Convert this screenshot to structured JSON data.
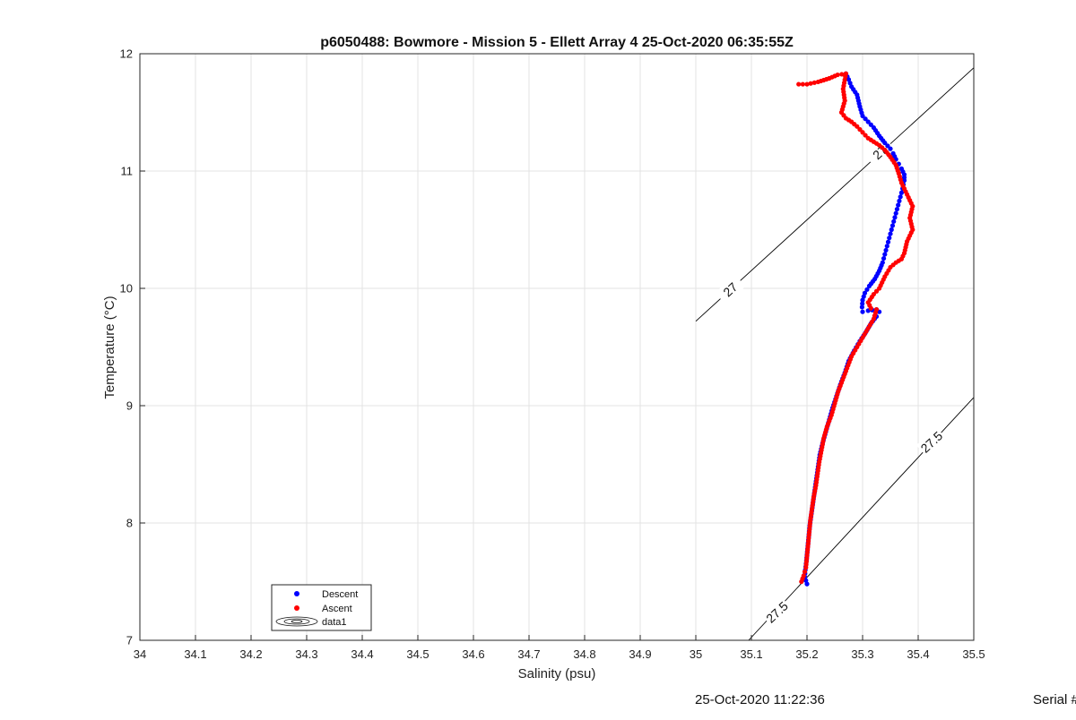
{
  "chart_data": {
    "type": "scatter",
    "title": "p6050488: Bowmore - Mission 5 - Ellett Array 4 25-Oct-2020 06:35:55Z",
    "xlabel": "Salinity (psu)",
    "ylabel": "Temperature (°C)",
    "xlim": [
      34,
      35.5
    ],
    "ylim": [
      7,
      12
    ],
    "xticks": [
      "34",
      "34.1",
      "34.2",
      "34.3",
      "34.4",
      "34.5",
      "34.6",
      "34.7",
      "34.8",
      "34.9",
      "35",
      "35.1",
      "35.2",
      "35.3",
      "35.4",
      "35.5"
    ],
    "yticks": [
      "7",
      "8",
      "9",
      "10",
      "11",
      "12"
    ],
    "grid": true,
    "legend_position": "bottom-left",
    "legend": [
      "Descent",
      "Ascent",
      "data1"
    ],
    "series": [
      {
        "name": "Descent",
        "color": "#0000ff",
        "points": [
          [
            35.27,
            11.83
          ],
          [
            35.275,
            11.78
          ],
          [
            35.28,
            11.72
          ],
          [
            35.29,
            11.65
          ],
          [
            35.295,
            11.55
          ],
          [
            35.3,
            11.47
          ],
          [
            35.31,
            11.42
          ],
          [
            35.32,
            11.37
          ],
          [
            35.33,
            11.3
          ],
          [
            35.34,
            11.24
          ],
          [
            35.35,
            11.19
          ],
          [
            35.355,
            11.15
          ],
          [
            35.36,
            11.1
          ],
          [
            35.365,
            11.06
          ],
          [
            35.37,
            11.02
          ],
          [
            35.375,
            10.97
          ],
          [
            35.375,
            10.92
          ],
          [
            35.372,
            10.85
          ],
          [
            35.368,
            10.78
          ],
          [
            35.364,
            10.71
          ],
          [
            35.36,
            10.64
          ],
          [
            35.356,
            10.57
          ],
          [
            35.352,
            10.5
          ],
          [
            35.348,
            10.43
          ],
          [
            35.344,
            10.36
          ],
          [
            35.34,
            10.29
          ],
          [
            35.336,
            10.22
          ],
          [
            35.33,
            10.15
          ],
          [
            35.322,
            10.08
          ],
          [
            35.312,
            10.02
          ],
          [
            35.304,
            9.96
          ],
          [
            35.3,
            9.9
          ],
          [
            35.299,
            9.84
          ],
          [
            35.3,
            9.8
          ],
          [
            35.31,
            9.81
          ],
          [
            35.325,
            9.82
          ],
          [
            35.33,
            9.8
          ],
          [
            35.325,
            9.76
          ],
          [
            35.315,
            9.7
          ],
          [
            35.305,
            9.62
          ],
          [
            35.295,
            9.55
          ],
          [
            35.285,
            9.47
          ],
          [
            35.275,
            9.38
          ],
          [
            35.268,
            9.28
          ],
          [
            35.26,
            9.18
          ],
          [
            35.253,
            9.08
          ],
          [
            35.246,
            8.98
          ],
          [
            35.24,
            8.88
          ],
          [
            35.234,
            8.78
          ],
          [
            35.228,
            8.68
          ],
          [
            35.223,
            8.58
          ],
          [
            35.22,
            8.48
          ],
          [
            35.217,
            8.38
          ],
          [
            35.214,
            8.28
          ],
          [
            35.211,
            8.18
          ],
          [
            35.208,
            8.08
          ],
          [
            35.205,
            7.98
          ],
          [
            35.203,
            7.88
          ],
          [
            35.201,
            7.78
          ],
          [
            35.199,
            7.68
          ],
          [
            35.197,
            7.6
          ],
          [
            35.196,
            7.54
          ],
          [
            35.2,
            7.48
          ]
        ]
      },
      {
        "name": "Ascent",
        "color": "#ff0000",
        "points": [
          [
            35.185,
            11.74
          ],
          [
            35.2,
            11.74
          ],
          [
            35.22,
            11.76
          ],
          [
            35.24,
            11.79
          ],
          [
            35.255,
            11.82
          ],
          [
            35.27,
            11.83
          ],
          [
            35.265,
            11.7
          ],
          [
            35.268,
            11.6
          ],
          [
            35.262,
            11.5
          ],
          [
            35.27,
            11.45
          ],
          [
            35.28,
            11.42
          ],
          [
            35.29,
            11.38
          ],
          [
            35.3,
            11.33
          ],
          [
            35.31,
            11.28
          ],
          [
            35.32,
            11.25
          ],
          [
            35.33,
            11.22
          ],
          [
            35.34,
            11.18
          ],
          [
            35.35,
            11.12
          ],
          [
            35.36,
            11.05
          ],
          [
            35.365,
            10.98
          ],
          [
            35.37,
            10.9
          ],
          [
            35.38,
            10.8
          ],
          [
            35.39,
            10.7
          ],
          [
            35.385,
            10.6
          ],
          [
            35.39,
            10.5
          ],
          [
            35.38,
            10.4
          ],
          [
            35.375,
            10.3
          ],
          [
            35.37,
            10.25
          ],
          [
            35.36,
            10.22
          ],
          [
            35.35,
            10.18
          ],
          [
            35.34,
            10.1
          ],
          [
            35.33,
            10.0
          ],
          [
            35.32,
            9.95
          ],
          [
            35.31,
            9.88
          ],
          [
            35.315,
            9.83
          ],
          [
            35.325,
            9.82
          ],
          [
            35.32,
            9.74
          ],
          [
            35.31,
            9.66
          ],
          [
            35.3,
            9.58
          ],
          [
            35.29,
            9.5
          ],
          [
            35.28,
            9.42
          ],
          [
            35.272,
            9.32
          ],
          [
            35.264,
            9.22
          ],
          [
            35.256,
            9.12
          ],
          [
            35.25,
            9.02
          ],
          [
            35.244,
            8.92
          ],
          [
            35.236,
            8.82
          ],
          [
            35.23,
            8.72
          ],
          [
            35.226,
            8.62
          ],
          [
            35.222,
            8.52
          ],
          [
            35.219,
            8.42
          ],
          [
            35.216,
            8.32
          ],
          [
            35.212,
            8.22
          ],
          [
            35.209,
            8.12
          ],
          [
            35.206,
            8.02
          ],
          [
            35.204,
            7.92
          ],
          [
            35.202,
            7.82
          ],
          [
            35.2,
            7.72
          ],
          [
            35.198,
            7.62
          ],
          [
            35.194,
            7.55
          ],
          [
            35.19,
            7.5
          ]
        ]
      }
    ],
    "contours": [
      {
        "label": "27",
        "points": [
          [
            35.0,
            9.72
          ],
          [
            35.5,
            11.88
          ]
        ]
      },
      {
        "label": "27.5",
        "points": [
          [
            35.095,
            7.0
          ],
          [
            35.5,
            9.07
          ]
        ]
      }
    ],
    "contour_labels": [
      {
        "text": "27",
        "at": [
          35.062,
          9.99
        ]
      },
      {
        "text": "27",
        "at": [
          35.331,
          11.16
        ]
      },
      {
        "text": "27.5",
        "at": [
          35.424,
          8.69
        ]
      },
      {
        "text": "27.5",
        "at": [
          35.146,
          7.24
        ]
      }
    ]
  },
  "footer": {
    "timestamp": "25-Oct-2020 11:22:36",
    "serial": "Serial #"
  }
}
